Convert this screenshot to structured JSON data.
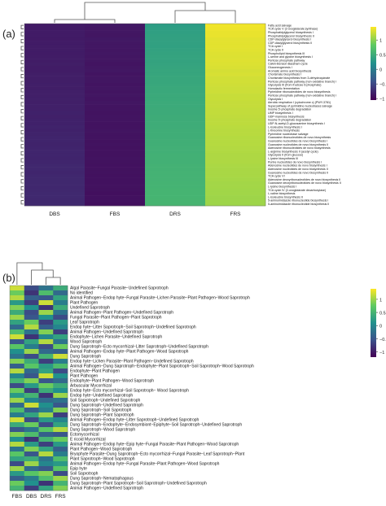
{
  "panel_a_label": "(a)",
  "panel_b_label": "(b)",
  "chart_data": [
    {
      "type": "heatmap",
      "panel": "(a)",
      "columns": [
        "DBS",
        "FBS",
        "DRS",
        "FRS"
      ],
      "rows": [
        "Fatty acid salvage",
        "TCA cycle V (2-oxoglutarate:synthase)",
        "Phosphatidylglycerol biosynthesis I",
        "Phosphatidylglycerol biosynthesis II",
        "CDP-diacylglycerol biosynthesis I",
        "CDP-diacylglycerol biosynthesis II",
        "TCA cycle I",
        "TCA cycle II",
        "Phospholipid biosynthesis III",
        "L-serine and glycine biosynthesis I",
        "Pentose phosphate pathway",
        "Calvin-Benson-Bassham cycle",
        "Gluconeogenesis I",
        "Aromatic amino acid biosynthesis",
        "Chorismate biosynthesis I",
        "Chorismate biosynthesis from 3-dehydroquinate",
        "Pentose phosphate pathway (non-oxidative branch) I",
        "Glycolysis III (from fructose 6-phosphate)",
        "Homolactic fermentation",
        "Pyrimidine ribonucleotides de novo biosynthesis",
        "Pentose phosphate pathway (non-oxidative branch) I",
        "Glycolysis I",
        "Aerobic respiration I (cytochrome c) (PWY-3781)",
        "Superpathway of pyrimidine nucleobases salvage",
        "Inosine 5'-phosphate degradation",
        "UMP biosynthesis I",
        "GDP-mannose biosynthesis",
        "Inosine 5'-phosphate degradation",
        "UDP-N-acetyl-D-glucosamine biosynthesis I",
        "L-isoleucine biosynthesis I",
        "L-threonine biosynthesis",
        "Pyrimidine nucleobase salvage",
        "Guanosine ribonucleotides de novo biosynthesis",
        "Guanosine nucleotides de novo biosynthesis I",
        "Guanosine nucleotides de novo biosynthesis II",
        "Adenosine ribonucleotides de novo biosynthesis",
        "L-arginine biosynthesis II (acetyl cycle)",
        "Glycolysis II (from glucose)",
        "L-lysine biosynthesis III",
        "Purine nucleotides de novo biosynthesis I",
        "Adenosine nucleotides de novo biosynthesis I",
        "Adenosine nucleotides de novo biosynthesis II",
        "Guanosine nucleotides de novo biosynthesis II",
        "TCA cycle VI",
        "Adenosine deoxyribonucleotides de novo biosynthesis II",
        "Guanosine deoxyribonucleotides de novo biosynthesis II",
        "L-lysine biosynthesis I",
        "TCA cycle IV (2-oxoglutarate decarboxylase)",
        "L-valine biosynthesis",
        "L-isoleucine biosynthesis II",
        "5-aminoimidazole ribonucleotide biosynthesis I",
        "5-aminoimidazole ribonucleotide biosynthesis II"
      ],
      "values": [
        [
          -0.86,
          -0.87,
          0.33,
          1.4
        ],
        [
          -0.86,
          -0.88,
          0.35,
          1.39
        ],
        [
          -0.85,
          -0.88,
          0.36,
          1.37
        ],
        [
          -0.85,
          -0.89,
          0.37,
          1.37
        ],
        [
          -0.86,
          -0.87,
          0.38,
          1.35
        ],
        [
          -0.85,
          -0.88,
          0.38,
          1.35
        ],
        [
          -0.84,
          -0.88,
          0.37,
          1.35
        ],
        [
          -0.84,
          -0.89,
          0.39,
          1.34
        ],
        [
          -0.85,
          -0.88,
          0.4,
          1.33
        ],
        [
          -0.84,
          -0.89,
          0.41,
          1.32
        ],
        [
          -0.84,
          -0.89,
          0.4,
          1.33
        ],
        [
          -0.83,
          -0.9,
          0.41,
          1.32
        ],
        [
          -0.84,
          -0.89,
          0.42,
          1.31
        ],
        [
          -0.84,
          -0.88,
          0.43,
          1.29
        ],
        [
          -0.83,
          -0.9,
          0.43,
          1.3
        ],
        [
          -0.83,
          -0.89,
          0.44,
          1.28
        ],
        [
          -0.83,
          -0.89,
          0.44,
          1.28
        ],
        [
          -0.82,
          -0.9,
          0.45,
          1.27
        ],
        [
          -0.83,
          -0.89,
          0.46,
          1.26
        ],
        [
          -0.82,
          -0.9,
          0.46,
          1.26
        ],
        [
          -0.82,
          -0.89,
          0.47,
          1.24
        ],
        [
          -0.81,
          -0.9,
          0.47,
          1.24
        ],
        [
          -0.82,
          -0.89,
          0.48,
          1.23
        ],
        [
          -0.81,
          -0.9,
          0.48,
          1.23
        ],
        [
          -0.81,
          -0.9,
          0.49,
          1.22
        ],
        [
          -0.8,
          -0.91,
          0.49,
          1.22
        ],
        [
          -0.81,
          -0.9,
          0.5,
          1.21
        ],
        [
          -0.8,
          -0.9,
          0.5,
          1.2
        ],
        [
          -0.8,
          -0.91,
          0.51,
          1.2
        ],
        [
          -0.79,
          -0.91,
          0.51,
          1.19
        ],
        [
          -0.8,
          -0.9,
          0.52,
          1.18
        ],
        [
          -0.79,
          -0.91,
          0.52,
          1.18
        ],
        [
          -0.78,
          -0.91,
          0.52,
          1.17
        ],
        [
          -0.78,
          -0.92,
          0.53,
          1.17
        ],
        [
          -0.79,
          -0.91,
          0.53,
          1.17
        ],
        [
          -0.78,
          -0.92,
          0.54,
          1.16
        ],
        [
          -0.77,
          -0.92,
          0.54,
          1.15
        ],
        [
          -0.77,
          -0.92,
          0.55,
          1.14
        ],
        [
          -0.78,
          -0.91,
          0.55,
          1.14
        ],
        [
          -0.77,
          -0.92,
          0.55,
          1.14
        ],
        [
          -0.76,
          -0.93,
          0.56,
          1.13
        ],
        [
          -0.76,
          -0.92,
          0.56,
          1.12
        ],
        [
          -0.77,
          -0.92,
          0.57,
          1.12
        ],
        [
          -0.76,
          -0.93,
          0.57,
          1.12
        ],
        [
          -0.75,
          -0.93,
          0.57,
          1.11
        ],
        [
          -0.75,
          -0.93,
          0.58,
          1.1
        ],
        [
          -0.76,
          -0.92,
          0.58,
          1.1
        ],
        [
          -0.75,
          -0.93,
          0.59,
          1.09
        ],
        [
          -0.74,
          -0.94,
          0.59,
          1.09
        ],
        [
          -0.74,
          -0.93,
          0.59,
          1.08
        ],
        [
          -0.75,
          -0.93,
          0.6,
          1.08
        ],
        [
          -0.74,
          -0.94,
          0.6,
          1.08
        ]
      ],
      "colorbar_ticks": [
        1,
        0.5,
        0,
        -0.5,
        -1
      ],
      "colorbar_tick_labels": [
        "1",
        "0.5",
        "0",
        "−0.5",
        "−1"
      ],
      "colorbar_range": [
        -1.05,
        1.45
      ],
      "colormap": [
        "#440154",
        "#3b528b",
        "#21908d",
        "#5dc962",
        "#fde725"
      ]
    },
    {
      "type": "heatmap",
      "panel": "(b)",
      "columns": [
        "FBS",
        "DBS",
        "DRS",
        "FRS"
      ],
      "rows": [
        "Algal Parasite−Fungal Parasite−Undefined Saprotroph",
        "No identified",
        "Animal Pathogen−Endop hyte−Fungal Parasite−Lichen Parasite−Plant Pathogen−Wood Saprotroph",
        "Plant Pathogen",
        "Undefined Saprotroph",
        "Animal Pathogen−Plant Pathogen−Undefined Saprotroph",
        "Fungal Parasite−Plant Pathogen−Plant Saprotroph",
        "Leaf Saprotroph",
        "Endop hyte−Litter Saprotroph−Soil Saprotroph−Undefined Saprotroph",
        "Animal Pathogen−Undefined Saprotroph",
        "Endophyte−Lichen Parasite−Undefined Saprotroph",
        "Wood Saprotroph",
        "Dung Saprotroph−Ecto mycorrhizal−Litter Saprotroph−Undefined Saprotroph",
        "Animal Pathogen−Endop hyte−Plant Pathogen−Wood Saprotroph",
        "Dung Saprotroph",
        "Endop hyte−Lichen Parasite−Plant Pathogen−Undefined Saprotroph",
        "Animal Pathogen−Dung Saprotroph−Endophyte−Plant Saprotroph−Soil Saprotroph−Wood Saprotroph",
        "Endophyte−Plant Pathogen",
        "Plant Pathogen",
        "Endophyte−Plant Pathogen−Wood Saprotroph",
        "Arbuscular Mycorrhizal",
        "Endop hyte−Ecto mycorrhizal−Soil Saprotroph− Wood Saprotroph",
        "Endop hyte−Undefined Saprotroph",
        "Soil Saprotroph−Undefined Saprotroph",
        "Dung Saprotroph−Undefined Saprotroph",
        "Dung Saprotroph−Soil Saprotroph",
        "Dung Saprotroph−Plant Saprotroph",
        "Animal Pathogen−Endop hyte−Litter Saprotroph−Undefined Saprotroph",
        "Dung Saprotroph−Endophyte−Endosymbiont−Epiphyte−Soil Saprotroph−Undefined Saprotroph",
        "Dung Saprotroph−Wood Saprotroph",
        "Ectomycorrhizal",
        "E ricoid Mycorrhizal",
        "Animal Pathogen−Endop hyte−Epip hyte−Fungal Parasite−Plant Pathogen−Wood Saprotroph",
        "Plant Pathogen−Wood Saprotroph",
        "Bryophyte Parasite−Dung Saprotroph−Ecto mycorrhizal−Fungal Parasite−Leaf Saprotroph−Plant",
        "Plant Saprotroph−Wood Saprotroph",
        "Animal Pathogen−Endop hyte−Fungal Parasite−Plant Pathogen−Wood Saprotroph",
        "Epip hyte",
        "Soil Saprotroph",
        "Dung Saprotroph−Nematophagous",
        "Dung Saprotroph−Plant Saprotroph−Soil Saprotroph−Undefined Saprotroph",
        "Animal Pathogen−Undefined Saprotroph"
      ],
      "values": [
        [
          1.2,
          -0.6,
          -0.2,
          0.4
        ],
        [
          0.8,
          -0.8,
          0.6,
          -0.3
        ],
        [
          1.1,
          -0.4,
          -0.5,
          0.3
        ],
        [
          0.2,
          -0.7,
          1.2,
          -0.1
        ],
        [
          0.9,
          0.1,
          -0.8,
          0.4
        ],
        [
          0.4,
          -0.6,
          1.0,
          -0.2
        ],
        [
          1.0,
          -0.5,
          0.1,
          -0.6
        ],
        [
          0.3,
          0.8,
          -0.7,
          0.2
        ],
        [
          -0.3,
          1.1,
          -0.4,
          0.0
        ],
        [
          0.6,
          -0.2,
          0.9,
          -0.7
        ],
        [
          1.2,
          -0.8,
          0.0,
          0.3
        ],
        [
          -0.5,
          0.3,
          1.1,
          -0.2
        ],
        [
          0.7,
          -0.1,
          -0.6,
          0.8
        ],
        [
          0.1,
          1.0,
          -0.3,
          -0.4
        ],
        [
          -0.2,
          -0.6,
          0.5,
          1.2
        ],
        [
          0.9,
          0.4,
          -0.7,
          -0.1
        ],
        [
          -0.4,
          0.7,
          0.2,
          0.6
        ],
        [
          1.1,
          -0.3,
          0.3,
          -0.6
        ],
        [
          0.0,
          -0.5,
          1.2,
          0.1
        ],
        [
          0.5,
          0.9,
          -0.5,
          -0.3
        ],
        [
          -0.6,
          0.2,
          0.8,
          0.4
        ],
        [
          0.8,
          -0.7,
          0.4,
          0.1
        ],
        [
          0.2,
          0.5,
          -0.8,
          1.0
        ],
        [
          1.0,
          0.0,
          -0.3,
          -0.2
        ],
        [
          -0.3,
          1.2,
          0.1,
          -0.5
        ],
        [
          0.6,
          -0.4,
          -0.1,
          0.9
        ],
        [
          -0.1,
          0.3,
          1.0,
          -0.7
        ],
        [
          1.2,
          -0.6,
          0.2,
          0.0
        ],
        [
          0.4,
          0.8,
          -0.6,
          0.3
        ],
        [
          -0.5,
          -0.2,
          0.7,
          1.1
        ],
        [
          0.9,
          0.6,
          -0.4,
          -0.5
        ],
        [
          0.1,
          -0.8,
          0.5,
          0.8
        ],
        [
          1.1,
          0.2,
          -0.7,
          0.2
        ],
        [
          -0.2,
          0.9,
          0.3,
          -0.4
        ],
        [
          0.7,
          -0.5,
          1.1,
          -0.1
        ],
        [
          0.3,
          0.4,
          -0.2,
          0.6
        ],
        [
          -0.6,
          1.0,
          0.0,
          0.2
        ],
        [
          1.0,
          -0.3,
          -0.5,
          0.7
        ],
        [
          0.2,
          0.7,
          0.9,
          -0.6
        ],
        [
          -0.4,
          -0.1,
          0.6,
          1.0
        ],
        [
          0.8,
          0.1,
          -0.8,
          0.5
        ],
        [
          0.5,
          -0.7,
          0.3,
          0.9
        ]
      ],
      "colorbar_ticks": [
        1,
        0.5,
        0,
        -0.5,
        -1
      ],
      "colorbar_tick_labels": [
        "1",
        "0.5",
        "0",
        "−0.5",
        "−1"
      ],
      "colorbar_range": [
        -1.2,
        1.4
      ],
      "colormap": [
        "#440154",
        "#3b528b",
        "#21908d",
        "#5dc962",
        "#fde725"
      ]
    }
  ]
}
